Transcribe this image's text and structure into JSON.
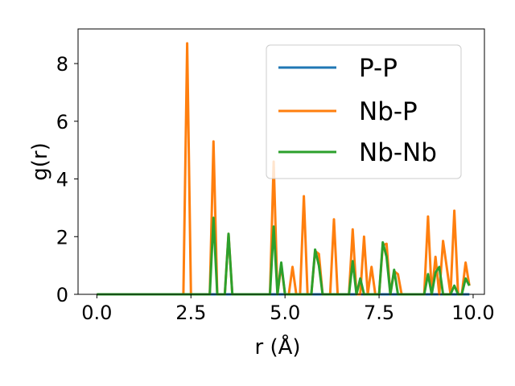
{
  "chart_data": {
    "type": "line",
    "xlabel": "r (Å)",
    "ylabel": "g(r)",
    "xlim": [
      -0.5,
      10.3
    ],
    "ylim": [
      0,
      9.2
    ],
    "xticks": [
      0.0,
      2.5,
      5.0,
      7.5,
      10.0
    ],
    "xtick_labels": [
      "0.0",
      "2.5",
      "5.0",
      "7.5",
      "10.0"
    ],
    "yticks": [
      0,
      2,
      4,
      6,
      8
    ],
    "ytick_labels": [
      "0",
      "2",
      "4",
      "6",
      "8"
    ],
    "grid": false,
    "legend_position": "top-right",
    "series": [
      {
        "name": "P-P",
        "color": "#1f77b4",
        "x": [
          0.0,
          9.9
        ],
        "y": [
          0,
          0
        ]
      },
      {
        "name": "Nb-P",
        "color": "#ff7f0e",
        "x": [
          0.0,
          2.3,
          2.4,
          2.5,
          3.0,
          3.1,
          3.2,
          3.4,
          3.5,
          3.6,
          4.6,
          4.7,
          4.8,
          4.9,
          5.0,
          5.1,
          5.2,
          5.3,
          5.4,
          5.5,
          5.6,
          5.7,
          5.8,
          5.9,
          6.0,
          6.2,
          6.3,
          6.4,
          6.7,
          6.8,
          6.9,
          7.0,
          7.1,
          7.2,
          7.3,
          7.4,
          7.5,
          7.6,
          7.7,
          7.8,
          7.9,
          8.0,
          8.1,
          8.7,
          8.8,
          8.9,
          9.0,
          9.1,
          9.2,
          9.4,
          9.5,
          9.6,
          9.7,
          9.8,
          9.9
        ],
        "y": [
          0,
          0,
          8.7,
          0,
          0,
          5.3,
          0,
          0,
          2.1,
          0,
          0,
          4.6,
          0,
          1.0,
          0,
          0,
          0.95,
          0,
          0,
          3.4,
          0,
          0,
          1.5,
          1.4,
          0,
          0,
          2.6,
          0,
          0,
          2.25,
          0,
          0,
          2.0,
          0,
          0.95,
          0,
          0,
          1.7,
          1.75,
          0,
          0.8,
          0.7,
          0,
          0,
          2.7,
          0,
          1.3,
          0,
          1.85,
          0,
          2.9,
          0,
          0,
          1.1,
          0.3
        ]
      },
      {
        "name": "Nb-Nb",
        "color": "#2ca02c",
        "x": [
          0.0,
          3.0,
          3.1,
          3.2,
          3.4,
          3.5,
          3.6,
          4.6,
          4.7,
          4.8,
          4.9,
          5.0,
          5.7,
          5.8,
          5.9,
          6.0,
          6.7,
          6.8,
          6.9,
          7.0,
          7.1,
          7.5,
          7.6,
          7.7,
          7.8,
          7.9,
          8.0,
          8.7,
          8.8,
          8.9,
          9.0,
          9.1,
          9.2,
          9.4,
          9.5,
          9.6,
          9.7,
          9.8,
          9.9
        ],
        "y": [
          0,
          0,
          2.65,
          0,
          0,
          2.1,
          0,
          0,
          2.35,
          0,
          1.1,
          0,
          0,
          1.55,
          1.0,
          0,
          0,
          1.15,
          0,
          0.55,
          0,
          0,
          1.8,
          1.3,
          0,
          0.85,
          0,
          0,
          0.7,
          0,
          0.75,
          0.95,
          0,
          0,
          0.3,
          0,
          0,
          0.55,
          0.3
        ]
      }
    ]
  }
}
